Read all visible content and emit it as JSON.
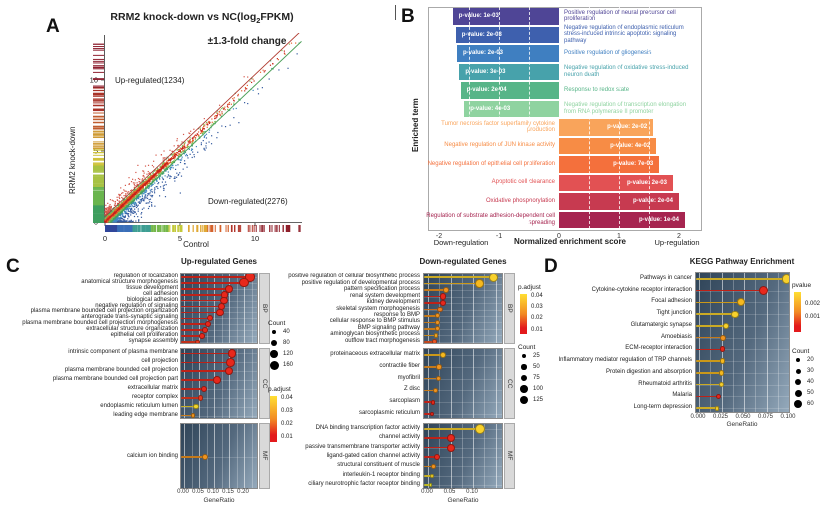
{
  "panel_a": {
    "label": "A",
    "title_pre": "RRM2 knock-down vs NC(log",
    "title_sub": "2",
    "title_post": "FPKM)",
    "subtitle": "±1.3-fold change",
    "up_label": "Up-regulated(1234)",
    "down_label": "Down-regulated(2276)",
    "xlabel": "Control",
    "ylabel": "RRM2 knock-down",
    "chart_data": {
      "type": "scatter",
      "xlim": [
        0,
        13
      ],
      "ylim": [
        0,
        13
      ],
      "xticks": [
        0,
        5,
        10
      ],
      "xtick_labels": [
        "0",
        "5",
        "10"
      ],
      "yticks": [
        0,
        5,
        10
      ],
      "ytick_labels": [
        "0",
        "5",
        "10"
      ],
      "up_count": 1234,
      "down_count": 2276,
      "fold_change_threshold": "±1.3",
      "lines": [
        {
          "name": "upper-threshold",
          "offset": 0.38,
          "color": "#b03a30"
        },
        {
          "name": "lower-threshold",
          "offset": -0.38,
          "color": "#4a9e57"
        }
      ],
      "density_colors": {
        "core": "#c7221a",
        "near": "#e8622c",
        "mid": "#7fbe52",
        "outer": "#3da06e",
        "far": "#4187c0",
        "cloud": "#33599e",
        "above": "#d4574a"
      },
      "rug_x_colors": [
        "#31479b",
        "#3a6fb8",
        "#3e9e93",
        "#74b74a",
        "#c3c93c",
        "#e0a936",
        "#d4622d",
        "#b03328",
        "#8e1f2a"
      ],
      "rug_y_colors": [
        "#3f9e5f",
        "#6ab54e",
        "#a8c244",
        "#cfc23a",
        "#cf9a33",
        "#c05c2e",
        "#a83227",
        "#8e2030"
      ]
    }
  },
  "panel_b": {
    "label": "B",
    "ylabel": "Enriched term",
    "xlabel": "Normalized enrichment score",
    "xlabel_left": "Down-regulation",
    "xlabel_right": "Up-regulation",
    "chart_data": {
      "type": "bar",
      "orientation": "horizontal",
      "xticks": [
        -2,
        -1,
        0,
        1,
        2
      ],
      "xtick_labels": [
        "-2",
        "-1",
        "0",
        "1",
        "2"
      ],
      "bars": [
        {
          "term": "Positive regulation of neural precursor cell proliferation",
          "nes": -1.77,
          "p_label": "p-value: 1e-03",
          "color": "#4f4596"
        },
        {
          "term": "Negative regulation of endoplasmic reticulum stress-induced intrinsic apoptotic signaling pathway",
          "nes": -1.72,
          "p_label": "p-value: 2e-03",
          "color": "#3e60ae"
        },
        {
          "term": "Positive regulation of gliogenesis",
          "nes": -1.7,
          "p_label": "p-value: 2e-03",
          "color": "#3f7fc1"
        },
        {
          "term": "Negative regulation of oxidative stress-induced neuron death",
          "nes": -1.66,
          "p_label": "p-value: 3e-03",
          "color": "#47a2ab"
        },
        {
          "term": "Response to redox state",
          "nes": -1.64,
          "p_label": "p-value: 2e-04",
          "color": "#57b588"
        },
        {
          "term": "Negative regulation of transcription elongation from RNA polymerase II promoter",
          "nes": -1.58,
          "p_label": "p-value: 4e-03",
          "color": "#8fd3a0"
        },
        {
          "term": "Tumor necrosis factor superfamily cytokine production",
          "nes": 1.57,
          "p_label": "p-value: 2e-02",
          "color": "#f9a45b"
        },
        {
          "term": "Negative regulation of JUN kinase activity",
          "nes": 1.62,
          "p_label": "p-value: 4e-02",
          "color": "#f78c45"
        },
        {
          "term": "Negative regulation of epithelial cell proliferation",
          "nes": 1.67,
          "p_label": "p-value: 7e-03",
          "color": "#f4703c"
        },
        {
          "term": "Apoptotic cell clearance",
          "nes": 1.9,
          "p_label": "p-value: 2e-03",
          "color": "#e25153"
        },
        {
          "term": "Oxidative phosphorylation",
          "nes": 2.0,
          "p_label": "p-value: 2e-04",
          "color": "#c73a50"
        },
        {
          "term": "Regulation of substrate adhesion-dependent cell spreading",
          "nes": 2.1,
          "p_label": "p-value: 1e-04",
          "color": "#a62550"
        }
      ]
    }
  },
  "panel_c": {
    "label": "C",
    "up": {
      "title": "Up-regulated Genes",
      "xlabel": "GeneRatio",
      "chart_data": {
        "type": "dot",
        "xticks": [
          0,
          0.05,
          0.1,
          0.15,
          0.2
        ],
        "xtick_labels": [
          "0.00",
          "0.05",
          "0.10",
          "0.15",
          "0.20"
        ],
        "facets": [
          {
            "name": "BP",
            "rows": [
              {
                "term": "regulation of localization",
                "ratio": 0.22,
                "r": 4.6,
                "color": "#e8281c"
              },
              {
                "term": "anatomical structure morphogenesis",
                "ratio": 0.2,
                "r": 4.6,
                "color": "#e8281c"
              },
              {
                "term": "tissue development",
                "ratio": 0.15,
                "r": 4.2,
                "color": "#e8281c"
              },
              {
                "term": "cell adhesion",
                "ratio": 0.135,
                "r": 3.8,
                "color": "#e8281c"
              },
              {
                "term": "biological adhesion",
                "ratio": 0.133,
                "r": 3.8,
                "color": "#e8281c"
              },
              {
                "term": "negative regulation of signaling",
                "ratio": 0.125,
                "r": 3.8,
                "color": "#e8281c"
              },
              {
                "term": "plasma membrane bounded cell projection organization",
                "ratio": 0.12,
                "r": 3.6,
                "color": "#e8281c"
              },
              {
                "term": "anterograde trans-synaptic signaling",
                "ratio": 0.085,
                "r": 3.0,
                "color": "#e8281c"
              },
              {
                "term": "plasma membrane bounded cell projection morphogenesis",
                "ratio": 0.08,
                "r": 3.0,
                "color": "#e8281c"
              },
              {
                "term": "extracellular structure organization",
                "ratio": 0.07,
                "r": 2.8,
                "color": "#e8281c"
              },
              {
                "term": "epithelial cell proliferation",
                "ratio": 0.06,
                "r": 2.8,
                "color": "#e8281c"
              },
              {
                "term": "synapse assembly",
                "ratio": 0.045,
                "r": 2.4,
                "color": "#ea3b20"
              }
            ]
          },
          {
            "name": "CC",
            "rows": [
              {
                "term": "intrinsic component of plasma membrane",
                "ratio": 0.16,
                "r": 4.4,
                "color": "#e8281c"
              },
              {
                "term": "cell projection",
                "ratio": 0.155,
                "r": 4.4,
                "color": "#e8281c"
              },
              {
                "term": "plasma membrane bounded cell projection",
                "ratio": 0.15,
                "r": 4.3,
                "color": "#e8281c"
              },
              {
                "term": "plasma membrane bounded cell projection part",
                "ratio": 0.11,
                "r": 3.8,
                "color": "#e8281c"
              },
              {
                "term": "extracellular matrix",
                "ratio": 0.065,
                "r": 3.0,
                "color": "#e8281c"
              },
              {
                "term": "receptor complex",
                "ratio": 0.055,
                "r": 2.7,
                "color": "#ea3b20"
              },
              {
                "term": "endoplasmic reticulum lumen",
                "ratio": 0.04,
                "r": 2.7,
                "color": "#f2d52b"
              },
              {
                "term": "leading edge membrane",
                "ratio": 0.03,
                "r": 2.2,
                "color": "#f0941f"
              }
            ]
          },
          {
            "name": "MF",
            "rows": [
              {
                "term": "calcium ion binding",
                "ratio": 0.07,
                "r": 3.2,
                "color": "#f0941f"
              }
            ]
          }
        ]
      },
      "legend_count": {
        "title": "Count",
        "items": [
          {
            "label": "40",
            "r": 2.2
          },
          {
            "label": "80",
            "r": 3.0
          },
          {
            "label": "120",
            "r": 3.8
          },
          {
            "label": "160",
            "r": 4.5
          }
        ]
      },
      "legend_padjust": {
        "title": "p.adjust",
        "labels": [
          "0.04",
          "0.03",
          "0.02",
          "0.01"
        ],
        "gradient": [
          "#ffdf32",
          "#f28a24",
          "#e31a1c"
        ]
      }
    },
    "down": {
      "title": "Down-regulated Genes",
      "xlabel": "GeneRatio",
      "chart_data": {
        "type": "dot",
        "xticks": [
          0,
          0.05,
          0.1
        ],
        "xtick_labels": [
          "0.00",
          "0.05",
          "0.10"
        ],
        "facets": [
          {
            "name": "BP",
            "rows": [
              {
                "term": "positive regulation of cellular biosynthetic process",
                "ratio": 0.145,
                "r": 4.6,
                "color": "#f8d12c"
              },
              {
                "term": "positive regulation of developmental process",
                "ratio": 0.115,
                "r": 4.4,
                "color": "#f6b91f"
              },
              {
                "term": "pattern specification process",
                "ratio": 0.04,
                "r": 3.0,
                "color": "#f0941f"
              },
              {
                "term": "renal system development",
                "ratio": 0.034,
                "r": 3.2,
                "color": "#e8281c"
              },
              {
                "term": "kidney development",
                "ratio": 0.034,
                "r": 3.2,
                "color": "#e8281c"
              },
              {
                "term": "skeletal system morphogenesis",
                "ratio": 0.027,
                "r": 2.8,
                "color": "#ee7d20"
              },
              {
                "term": "response to BMP",
                "ratio": 0.021,
                "r": 2.5,
                "color": "#f0941f"
              },
              {
                "term": "cellular response to BMP stimulus",
                "ratio": 0.021,
                "r": 2.5,
                "color": "#f0941f"
              },
              {
                "term": "BMP signaling pathway",
                "ratio": 0.02,
                "r": 2.5,
                "color": "#f0941f"
              },
              {
                "term": "aminoglycan biosynthetic process",
                "ratio": 0.018,
                "r": 2.4,
                "color": "#f3a722"
              },
              {
                "term": "outflow tract morphogenesis",
                "ratio": 0.014,
                "r": 2.3,
                "color": "#ea5524"
              }
            ]
          },
          {
            "name": "CC",
            "rows": [
              {
                "term": "proteinaceous extracellular matrix",
                "ratio": 0.033,
                "r": 3.2,
                "color": "#f6b91f"
              },
              {
                "term": "contractile fiber",
                "ratio": 0.025,
                "r": 2.8,
                "color": "#f0941f"
              },
              {
                "term": "myofibril",
                "ratio": 0.023,
                "r": 2.7,
                "color": "#f0941f"
              },
              {
                "term": "Z disc",
                "ratio": 0.016,
                "r": 2.4,
                "color": "#f0941f"
              },
              {
                "term": "sarcoplasm",
                "ratio": 0.011,
                "r": 2.3,
                "color": "#e8281c"
              },
              {
                "term": "sarcoplasmic reticulum",
                "ratio": 0.009,
                "r": 2.2,
                "color": "#e8281c"
              }
            ]
          },
          {
            "name": "MF",
            "rows": [
              {
                "term": "DNA binding transcription factor activity",
                "ratio": 0.115,
                "r": 5.0,
                "color": "#f8d12c"
              },
              {
                "term": "channel activity",
                "ratio": 0.05,
                "r": 4.0,
                "color": "#e8281c"
              },
              {
                "term": "passive transmembrane transporter activity",
                "ratio": 0.05,
                "r": 4.0,
                "color": "#e8281c"
              },
              {
                "term": "ligand-gated cation channel activity",
                "ratio": 0.021,
                "r": 3.0,
                "color": "#e8281c"
              },
              {
                "term": "structural constituent of muscle",
                "ratio": 0.013,
                "r": 2.4,
                "color": "#f0941f"
              },
              {
                "term": "interleukin-1 receptor binding",
                "ratio": 0.008,
                "r": 2.0,
                "color": "#f2d52b"
              },
              {
                "term": "ciliary neurotrophic factor receptor binding",
                "ratio": 0.006,
                "r": 1.8,
                "color": "#e8e02c"
              }
            ]
          }
        ]
      },
      "legend_padjust": {
        "title": "p.adjust",
        "labels": [
          "0.04",
          "0.03",
          "0.02",
          "0.01"
        ],
        "gradient": [
          "#ffdf32",
          "#f28a24",
          "#e31a1c"
        ]
      },
      "legend_count": {
        "title": "Count",
        "items": [
          {
            "label": "25",
            "r": 2.0
          },
          {
            "label": "50",
            "r": 2.6
          },
          {
            "label": "75",
            "r": 3.2
          },
          {
            "label": "100",
            "r": 3.8
          },
          {
            "label": "125",
            "r": 4.4
          }
        ]
      }
    }
  },
  "panel_d": {
    "label": "D",
    "title": "KEGG Pathway Enrichment",
    "xlabel": "GeneRatio",
    "chart_data": {
      "type": "dot",
      "xticks": [
        0,
        0.025,
        0.05,
        0.075,
        0.1
      ],
      "xtick_labels": [
        "0.000",
        "0.025",
        "0.050",
        "0.075",
        "0.100"
      ],
      "rows": [
        {
          "term": "Pathways in cancer",
          "ratio": 0.097,
          "r": 4.8,
          "color": "#f8d12c"
        },
        {
          "term": "Cytokine-cytokine receptor interaction",
          "ratio": 0.072,
          "r": 4.6,
          "color": "#e8281c"
        },
        {
          "term": "Focal adhesion",
          "ratio": 0.047,
          "r": 4.0,
          "color": "#f6b91f"
        },
        {
          "term": "Tight junction",
          "ratio": 0.04,
          "r": 3.6,
          "color": "#f8d12c"
        },
        {
          "term": "Glutamatergic synapse",
          "ratio": 0.03,
          "r": 3.2,
          "color": "#f8d12c"
        },
        {
          "term": "Amoebiasis",
          "ratio": 0.027,
          "r": 2.9,
          "color": "#f0941f"
        },
        {
          "term": "ECM-receptor interaction",
          "ratio": 0.026,
          "r": 2.9,
          "color": "#e8281c"
        },
        {
          "term": "Inflammatory mediator regulation of TRP channels",
          "ratio": 0.026,
          "r": 2.9,
          "color": "#f6b91f"
        },
        {
          "term": "Protein digestion and absorption",
          "ratio": 0.025,
          "r": 2.9,
          "color": "#f6b91f"
        },
        {
          "term": "Rheumatoid arthritis",
          "ratio": 0.025,
          "r": 2.8,
          "color": "#f8d12c"
        },
        {
          "term": "Malaria",
          "ratio": 0.022,
          "r": 2.6,
          "color": "#e8281c"
        },
        {
          "term": "Long-term depression",
          "ratio": 0.02,
          "r": 2.4,
          "color": "#f8d12c"
        }
      ]
    },
    "legend_pvalue": {
      "title": "pvalue",
      "labels": [
        "0.002",
        "0.001"
      ],
      "gradient": [
        "#ffdf32",
        "#f28a24",
        "#e31a1c"
      ]
    },
    "legend_count": {
      "title": "Count",
      "items": [
        {
          "label": "20",
          "r": 2.0
        },
        {
          "label": "30",
          "r": 2.5
        },
        {
          "label": "40",
          "r": 3.0
        },
        {
          "label": "50",
          "r": 3.5
        },
        {
          "label": "60",
          "r": 4.0
        }
      ]
    }
  }
}
